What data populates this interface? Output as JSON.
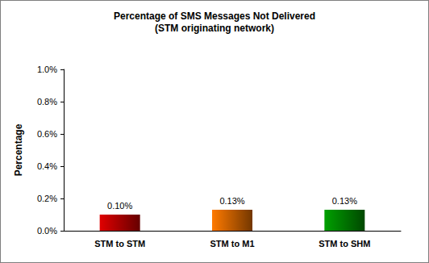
{
  "chart_data": {
    "type": "bar",
    "title": "Percentage of SMS Messages Not Delivered",
    "subtitle": "(STM originating network)",
    "y_label": "Percentage",
    "categories": [
      "STM to STM",
      "STM to M1",
      "STM to SHM"
    ],
    "values": [
      0.1,
      0.13,
      0.13
    ],
    "value_labels": [
      "0.10%",
      "0.13%",
      "0.13%"
    ],
    "colors": [
      "#e00000",
      "#ff7a00",
      "#00a000"
    ],
    "ylim": [
      0,
      1.0
    ],
    "yticks": [
      {
        "value": 0,
        "label": "0.0%"
      },
      {
        "value": 0.2,
        "label": "0.2%"
      },
      {
        "value": 0.4,
        "label": "0.4%"
      },
      {
        "value": 0.6,
        "label": "0.6%"
      },
      {
        "value": 0.8,
        "label": "0.8%"
      },
      {
        "value": 1.0,
        "label": "1.0%"
      }
    ],
    "grid": false,
    "data_labels": true
  }
}
